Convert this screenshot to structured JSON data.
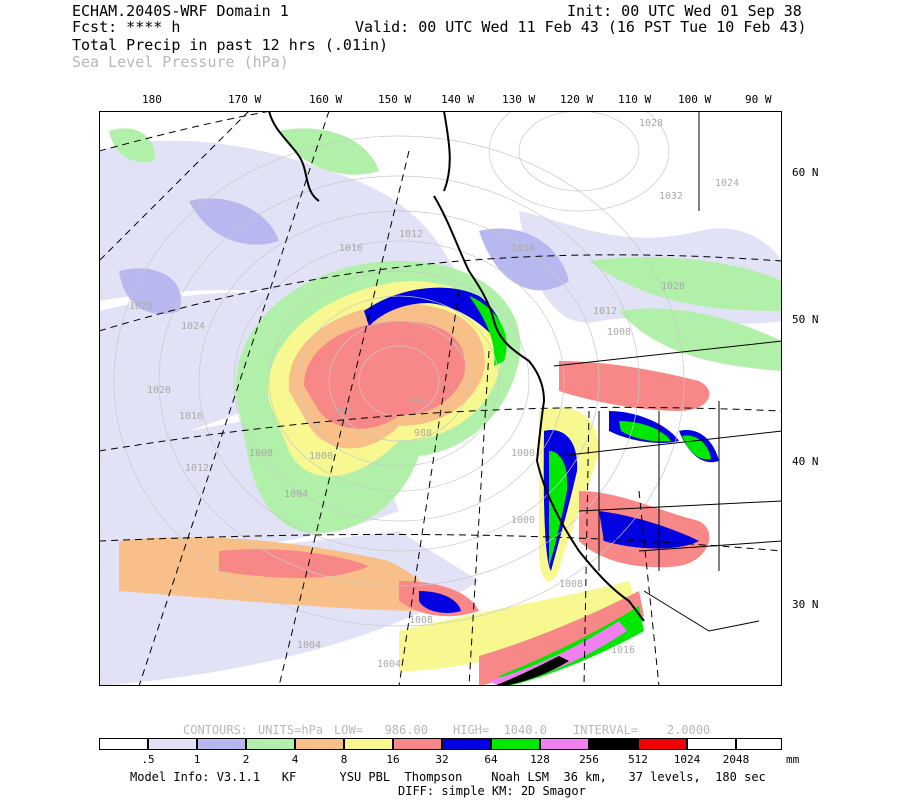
{
  "header": {
    "left_line1": "ECHAM.2040S-WRF Domain 1",
    "left_line2": "Fcst: **** h",
    "init": "Init: 00 UTC Wed 01 Sep 38",
    "valid": "Valid: 00 UTC Wed 11 Feb 43 (16 PST Tue 10 Feb 43)",
    "field1": "Total Precip in past 12 hrs (.01in)",
    "field2": "Sea Level Pressure (hPa)"
  },
  "longitudes": [
    "180",
    "170 W",
    "160 W",
    "150 W",
    "140 W",
    "130 W",
    "120 W",
    "110 W",
    "100 W",
    "90 W"
  ],
  "latitudes": [
    "60 N",
    "50 N",
    "40 N",
    "30 N"
  ],
  "contour_info": {
    "contours": "CONTOURS:",
    "units": "UNITS=hPa",
    "low": "LOW=   986.00",
    "high": "HIGH=  1040.0",
    "interval": "INTERVAL=    2.0000"
  },
  "pressure_labels": [
    "1020",
    "1024",
    "1028",
    "1032",
    "1016",
    "1016",
    "1012",
    "1008",
    "1004",
    "1000",
    "996",
    "992",
    "988",
    "1024",
    "1020",
    "1016",
    "1012",
    "1008",
    "1004",
    "1000",
    "1008",
    "1004",
    "1016",
    "1020",
    "1024",
    "1032",
    "1028"
  ],
  "colorbar": {
    "labels": [
      ".5",
      "1",
      "2",
      "4",
      "8",
      "16",
      "32",
      "64",
      "128",
      "256",
      "512",
      "1024",
      "2048"
    ],
    "unit": "mm",
    "colors": [
      "#ffffff",
      "#e2e2f6",
      "#b8b8f0",
      "#b0f0a8",
      "#f8c088",
      "#f8f890",
      "#f88888",
      "#0000e0",
      "#00e800",
      "#f080f0",
      "#000000",
      "#f00000",
      "#ffffff"
    ]
  },
  "footer": {
    "line1": "Model Info: V3.1.1   KF      YSU PBL  Thompson    Noah LSM  36 km,   37 levels,  180 sec",
    "line2": "DIFF: simple KM: 2D Smagor"
  }
}
